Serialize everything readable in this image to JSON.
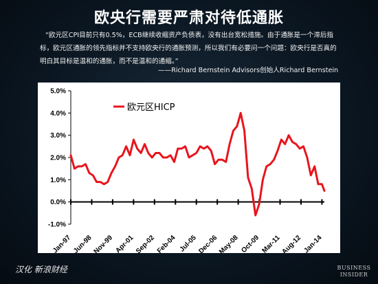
{
  "header": {
    "title": "欧央行需要严肃对待低通胀",
    "quote": "“欧元区CPI目前只有0.5%，ECB继续收缩资产负债表，没有出台宽松措施。由于通胀是一个滞后指标，欧元区通胀的领先指标并不支持欧央行的通胀预测，所以我们有必要问一个问题：欧央行是否真的明白其目标是温和的通胀，而不是温和的通缩。”",
    "attribution": "——Richard Bernstein Advisors创始人Richard Bernstein"
  },
  "footer": {
    "credit": "汉化 新浪财经",
    "logo_line1": "BUSINESS",
    "logo_line2": "INSIDER"
  },
  "colors": {
    "series": "#e8141c",
    "axis": "#000000"
  },
  "chart_data": {
    "type": "line",
    "legend_position": "top-left",
    "grid": false,
    "ylim": [
      -1.0,
      5.0
    ],
    "y_ticks": [
      "-1.0%",
      "0.0%",
      "1.0%",
      "2.0%",
      "3.0%",
      "4.0%",
      "5.0%"
    ],
    "x_ticks": [
      "Jan-97",
      "Jun-98",
      "Nov-99",
      "Apr-01",
      "Sep-02",
      "Feb-04",
      "Jul-05",
      "Dec-06",
      "May-08",
      "Oct-09",
      "Mar-11",
      "Aug-12",
      "Jan-14"
    ],
    "series": [
      {
        "name": "欧元区HICP",
        "x": [
          "1997-01",
          "1997-04",
          "1997-07",
          "1997-10",
          "1998-01",
          "1998-04",
          "1998-07",
          "1998-10",
          "1999-01",
          "1999-04",
          "1999-07",
          "1999-10",
          "2000-01",
          "2000-04",
          "2000-07",
          "2000-10",
          "2001-01",
          "2001-04",
          "2001-07",
          "2001-10",
          "2002-01",
          "2002-04",
          "2002-07",
          "2002-10",
          "2003-01",
          "2003-04",
          "2003-07",
          "2003-10",
          "2004-01",
          "2004-04",
          "2004-07",
          "2004-10",
          "2005-01",
          "2005-04",
          "2005-07",
          "2005-10",
          "2006-01",
          "2006-04",
          "2006-07",
          "2006-10",
          "2007-01",
          "2007-04",
          "2007-07",
          "2007-10",
          "2008-01",
          "2008-04",
          "2008-07",
          "2008-10",
          "2009-01",
          "2009-04",
          "2009-07",
          "2009-10",
          "2010-01",
          "2010-04",
          "2010-07",
          "2010-10",
          "2011-01",
          "2011-04",
          "2011-07",
          "2011-10",
          "2012-01",
          "2012-04",
          "2012-07",
          "2012-10",
          "2013-01",
          "2013-04",
          "2013-07",
          "2013-10",
          "2014-01",
          "2014-03"
        ],
        "values": [
          2.1,
          1.5,
          1.6,
          1.6,
          1.7,
          1.3,
          1.2,
          0.9,
          0.9,
          0.8,
          0.9,
          1.3,
          1.6,
          2.0,
          2.1,
          2.5,
          2.1,
          2.8,
          2.4,
          2.2,
          2.6,
          2.2,
          2.0,
          2.2,
          2.2,
          2.0,
          2.0,
          2.1,
          1.8,
          2.4,
          2.4,
          2.5,
          2.0,
          2.1,
          2.2,
          2.5,
          2.4,
          2.5,
          2.3,
          1.7,
          1.9,
          1.9,
          1.8,
          2.6,
          3.2,
          3.4,
          4.0,
          3.2,
          1.1,
          0.6,
          -0.6,
          -0.1,
          1.0,
          1.6,
          1.7,
          1.9,
          2.3,
          2.8,
          2.6,
          3.0,
          2.7,
          2.6,
          2.4,
          2.5,
          2.0,
          1.2,
          1.6,
          0.8,
          0.8,
          0.5
        ]
      }
    ]
  }
}
